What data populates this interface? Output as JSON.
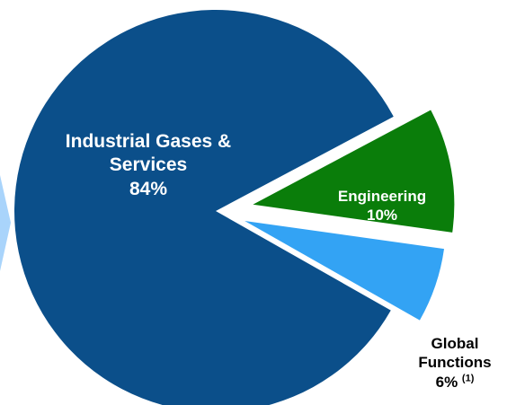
{
  "chart_data": {
    "type": "pie",
    "categories": [
      "Industrial Gases & Services",
      "Engineering",
      "Global Functions"
    ],
    "values": [
      84,
      10,
      6
    ],
    "value_labels": [
      "84%",
      "10%",
      "6%"
    ],
    "colors": [
      "#0b4f8a",
      "#0a7d0a",
      "#33a3f4"
    ],
    "annotations": [
      "(1)"
    ]
  }
}
